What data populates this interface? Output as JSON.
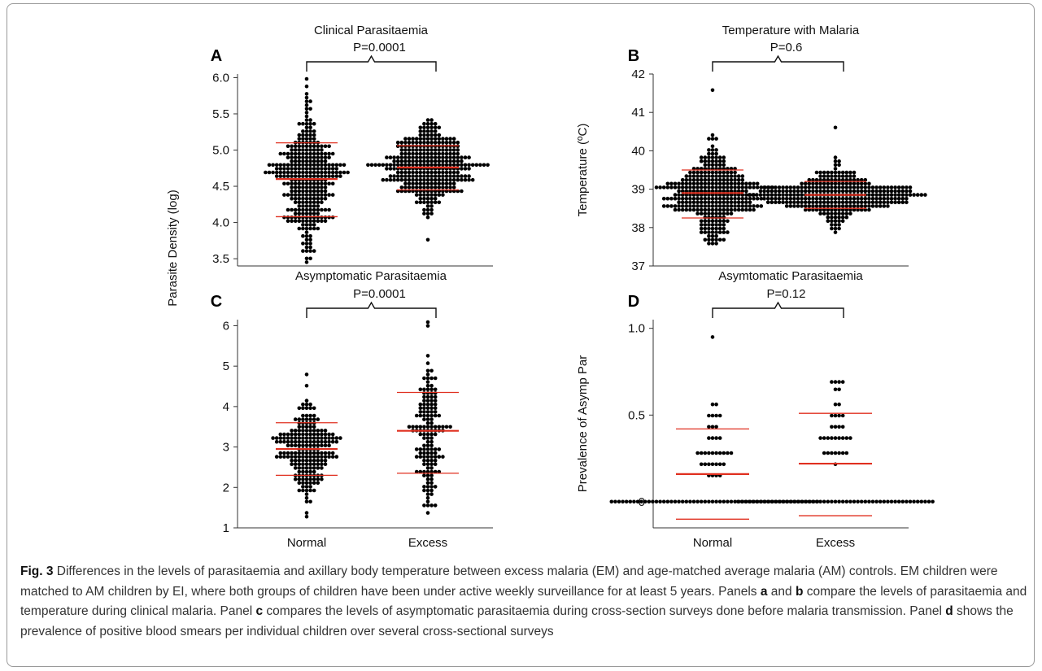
{
  "figure": {
    "shared_ylabel": "Parasite Density (log)",
    "x_categories": [
      "Normal",
      "Excess"
    ]
  },
  "caption": {
    "label": "Fig. 3",
    "t1": " Differences in the levels of parasitaemia and axillary body temperature between excess malaria (EM) and age-matched average malaria (AM) controls. EM children were matched to AM children by EI, where both groups of children have been under active weekly surveillance for at least 5 years. Panels ",
    "a": "a",
    "t2": " and ",
    "b": "b",
    "t3": " compare the levels of parasitaemia and temperature during clinical malaria. Panel ",
    "c": "c",
    "t4": " compares the levels of asymptomatic parasitaemia during cross-section surveys done before malaria transmission. Panel ",
    "d": "d",
    "t5": " shows the prevalence of positive blood smears per individual children over several cross-sectional surveys"
  },
  "colors": {
    "dot": "#000000",
    "line": "#e03020",
    "axis": "#333333"
  },
  "chart_data": [
    {
      "panel": "A",
      "type": "scatter",
      "title": "Clinical Parasitaemia",
      "ylabel": "",
      "ylim": [
        3.4,
        6.05
      ],
      "yticks": [
        3.5,
        4.0,
        4.5,
        5.0,
        5.5,
        6.0
      ],
      "ytick_labels": [
        "3.5",
        "4.0",
        "4.5",
        "5.0",
        "5.5",
        "6.0"
      ],
      "categories": [
        "",
        ""
      ],
      "pvalue": "P=0.0001",
      "series": [
        {
          "mean": 4.6,
          "sd_low": 4.08,
          "sd_high": 5.1,
          "min": 3.43,
          "max": 6.0,
          "n": 330
        },
        {
          "mean": 4.76,
          "sd_low": 4.45,
          "sd_high": 5.06,
          "min": 3.78,
          "max": 5.4,
          "n": 340
        }
      ]
    },
    {
      "panel": "B",
      "type": "scatter",
      "title": "Temperature with Malaria",
      "ylabel": "Temperature (ºC)",
      "ylim": [
        37,
        42
      ],
      "yticks": [
        37,
        38,
        39,
        40,
        41,
        42
      ],
      "ytick_labels": [
        "37",
        "38",
        "39",
        "40",
        "41",
        "42"
      ],
      "categories": [
        "",
        ""
      ],
      "pvalue": "P=0.6",
      "series": [
        {
          "mean": 38.9,
          "sd_low": 38.25,
          "sd_high": 39.5,
          "min": 37.55,
          "max": 41.55,
          "n": 340
        },
        {
          "mean": 38.85,
          "sd_low": 38.5,
          "sd_high": 39.2,
          "min": 37.9,
          "max": 40.65,
          "n": 340
        }
      ]
    },
    {
      "panel": "C",
      "type": "scatter",
      "title": "Asymptomatic Parasitaemia",
      "ylabel": "",
      "ylim": [
        1,
        6.15
      ],
      "yticks": [
        1,
        2,
        3,
        4,
        5,
        6
      ],
      "ytick_labels": [
        "1",
        "2",
        "3",
        "4",
        "5",
        "6"
      ],
      "categories": [
        "Normal",
        "Excess"
      ],
      "pvalue": "P=0.0001",
      "series": [
        {
          "mean": 2.95,
          "sd_low": 2.3,
          "sd_high": 3.6,
          "min": 1.25,
          "max": 4.8,
          "n": 210
        },
        {
          "mean": 3.4,
          "sd_low": 2.35,
          "sd_high": 4.35,
          "min": 1.4,
          "max": 6.1,
          "n": 150
        }
      ]
    },
    {
      "panel": "D",
      "type": "scatter",
      "title": "Asymtomatic Parasitaemia",
      "ylabel": "Prevalence of Asymp Par",
      "ylim": [
        -0.15,
        1.05
      ],
      "yticks": [
        0,
        0.5,
        1.0
      ],
      "ytick_labels": [
        "0",
        "0.5",
        "1.0"
      ],
      "categories": [
        "Normal",
        "Excess"
      ],
      "pvalue": "P=0.12",
      "series": [
        {
          "mean": 0.16,
          "sd_low": -0.1,
          "sd_high": 0.42,
          "min": 0,
          "max": 0.96,
          "n": 90
        },
        {
          "mean": 0.22,
          "sd_low": -0.08,
          "sd_high": 0.51,
          "min": 0,
          "max": 0.7,
          "n": 85
        }
      ]
    }
  ]
}
